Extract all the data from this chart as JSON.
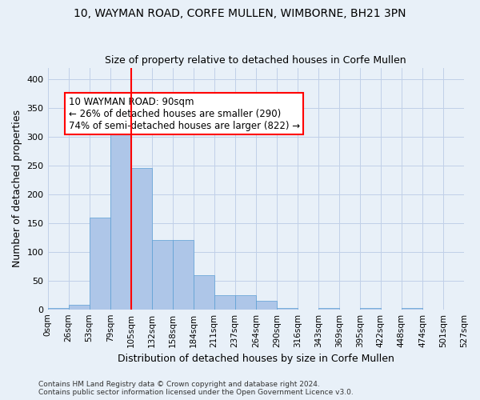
{
  "title": "10, WAYMAN ROAD, CORFE MULLEN, WIMBORNE, BH21 3PN",
  "subtitle": "Size of property relative to detached houses in Corfe Mullen",
  "xlabel": "Distribution of detached houses by size in Corfe Mullen",
  "ylabel": "Number of detached properties",
  "footer_line1": "Contains HM Land Registry data © Crown copyright and database right 2024.",
  "footer_line2": "Contains public sector information licensed under the Open Government Licence v3.0.",
  "bin_labels": [
    "0sqm",
    "26sqm",
    "53sqm",
    "79sqm",
    "105sqm",
    "132sqm",
    "158sqm",
    "184sqm",
    "211sqm",
    "237sqm",
    "264sqm",
    "290sqm",
    "316sqm",
    "343sqm",
    "369sqm",
    "395sqm",
    "422sqm",
    "448sqm",
    "474sqm",
    "501sqm",
    "527sqm"
  ],
  "bar_values": [
    3,
    8,
    160,
    310,
    245,
    120,
    120,
    60,
    25,
    25,
    15,
    3,
    0,
    3,
    0,
    3,
    0,
    3,
    0,
    0
  ],
  "bar_color": "#aec6e8",
  "bar_edge_color": "#5a9fd4",
  "grid_color": "#c0d0e8",
  "background_color": "#e8f0f8",
  "vline_x": 3.5,
  "vline_color": "red",
  "annotation_text": "10 WAYMAN ROAD: 90sqm\n← 26% of detached houses are smaller (290)\n74% of semi-detached houses are larger (822) →",
  "annotation_box_color": "white",
  "annotation_box_edge_color": "red",
  "ylim": [
    0,
    420
  ],
  "yticks": [
    0,
    50,
    100,
    150,
    200,
    250,
    300,
    350,
    400
  ]
}
